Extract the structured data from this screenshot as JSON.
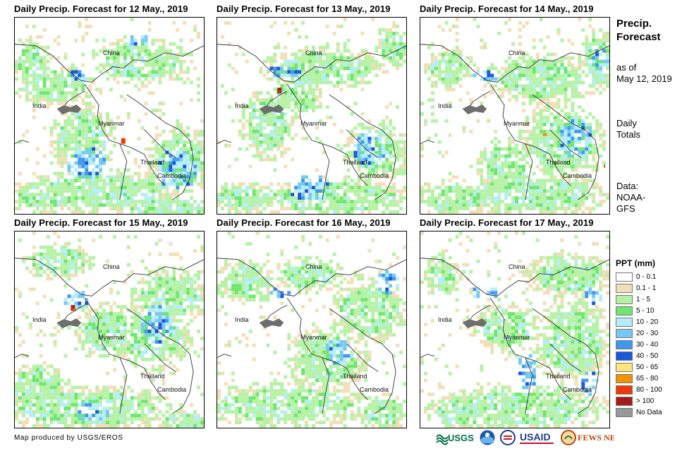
{
  "panels": [
    {
      "title": "Daily Precip. Forecast for 12 May., 2019"
    },
    {
      "title": "Daily Precip. Forecast for 13 May., 2019"
    },
    {
      "title": "Daily Precip. Forecast for 14 May., 2019"
    },
    {
      "title": "Daily Precip. Forecast for 15 May., 2019"
    },
    {
      "title": "Daily Precip. Forecast for 16 May., 2019"
    },
    {
      "title": "Daily Precip. Forecast for 17 May., 2019"
    }
  ],
  "map_labels": {
    "china": "China",
    "india": "India",
    "myanmar": "Myanmar",
    "thailand": "Thailand",
    "cambodia": "Cambodia"
  },
  "side": {
    "title_line1": "Precip.",
    "title_line2": "Forecast",
    "asof_line1": "as of",
    "asof_line2": "May 12, 2019",
    "totals_line1": "Daily",
    "totals_line2": "Totals",
    "data_line1": "Data:",
    "data_line2": "NOAA-",
    "data_line3": "GFS"
  },
  "legend": {
    "title": "PPT (mm)",
    "items": [
      {
        "label": "0 - 0.1",
        "color": "#ffffff"
      },
      {
        "label": "0.1 - 1",
        "color": "#f1dfb8"
      },
      {
        "label": "1 - 5",
        "color": "#b6f2a6"
      },
      {
        "label": "5 - 10",
        "color": "#6fe66f"
      },
      {
        "label": "10 - 20",
        "color": "#b4eef9"
      },
      {
        "label": "20 - 30",
        "color": "#77c8f2"
      },
      {
        "label": "30 - 40",
        "color": "#3f98ee"
      },
      {
        "label": "40 - 50",
        "color": "#1b57d8"
      },
      {
        "label": "50 - 65",
        "color": "#fde57c"
      },
      {
        "label": "65 - 80",
        "color": "#f39200"
      },
      {
        "label": "80 - 100",
        "color": "#ee3a08"
      },
      {
        "label": "> 100",
        "color": "#a51b1b"
      },
      {
        "label": "No Data",
        "color": "#999999"
      }
    ]
  },
  "credit": "Map produced by USGS/EROS",
  "logos": {
    "usgs": "USGS",
    "usaid": "USAID",
    "fewsnet": "FEWS NET"
  }
}
